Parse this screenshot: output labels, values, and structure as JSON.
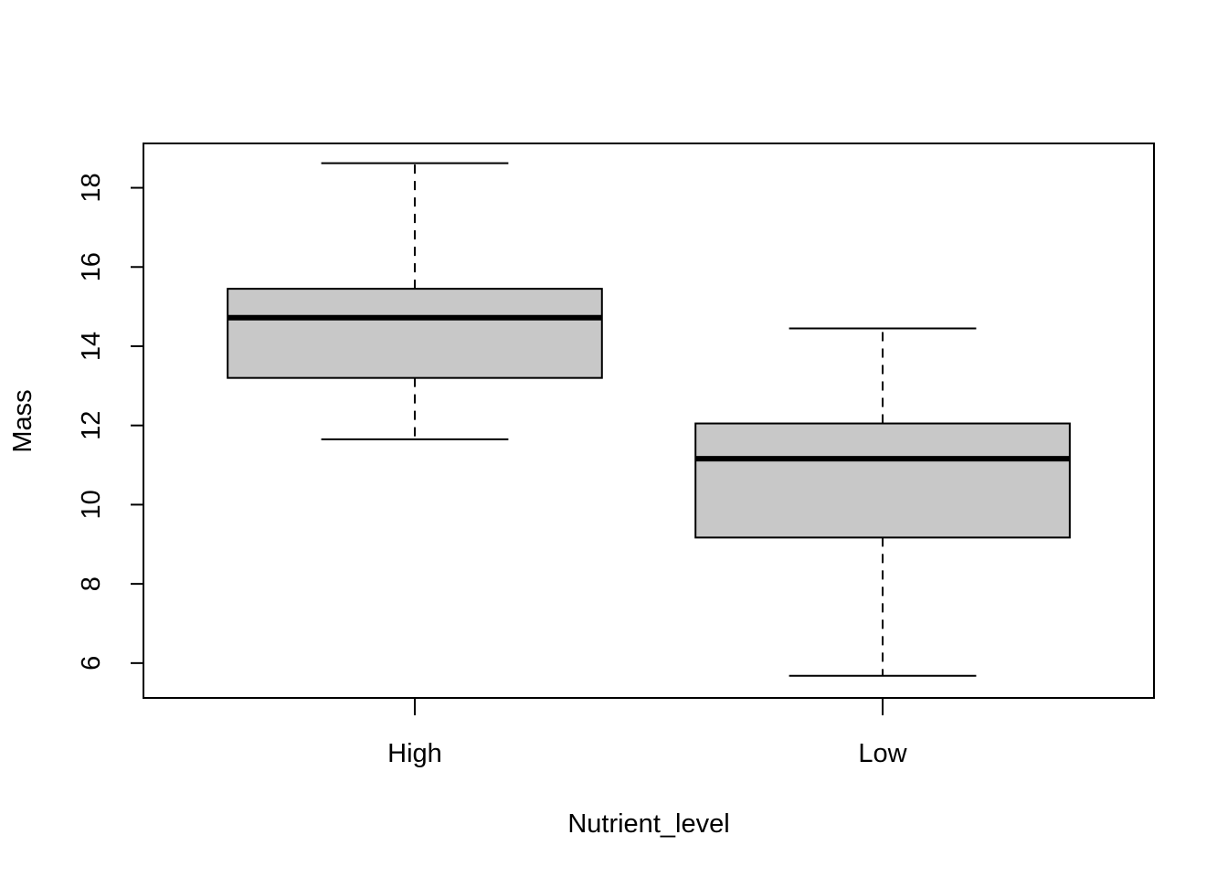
{
  "chart_data": {
    "type": "boxplot",
    "title": "",
    "xlabel": "Nutrient_level",
    "ylabel": "Mass",
    "ylim": [
      5.12,
      19.12
    ],
    "yticks": [
      6,
      8,
      10,
      12,
      14,
      16,
      18
    ],
    "grid": false,
    "legend": "none",
    "box_fill": "#c8c8c8",
    "line_color": "#000000",
    "categories": [
      "High",
      "Low"
    ],
    "boxes": [
      {
        "category": "High",
        "min": 11.65,
        "q1": 13.2,
        "median": 14.72,
        "q3": 15.45,
        "max": 18.62
      },
      {
        "category": "Low",
        "min": 5.68,
        "q1": 9.17,
        "median": 11.16,
        "q3": 12.05,
        "max": 14.45
      }
    ]
  }
}
